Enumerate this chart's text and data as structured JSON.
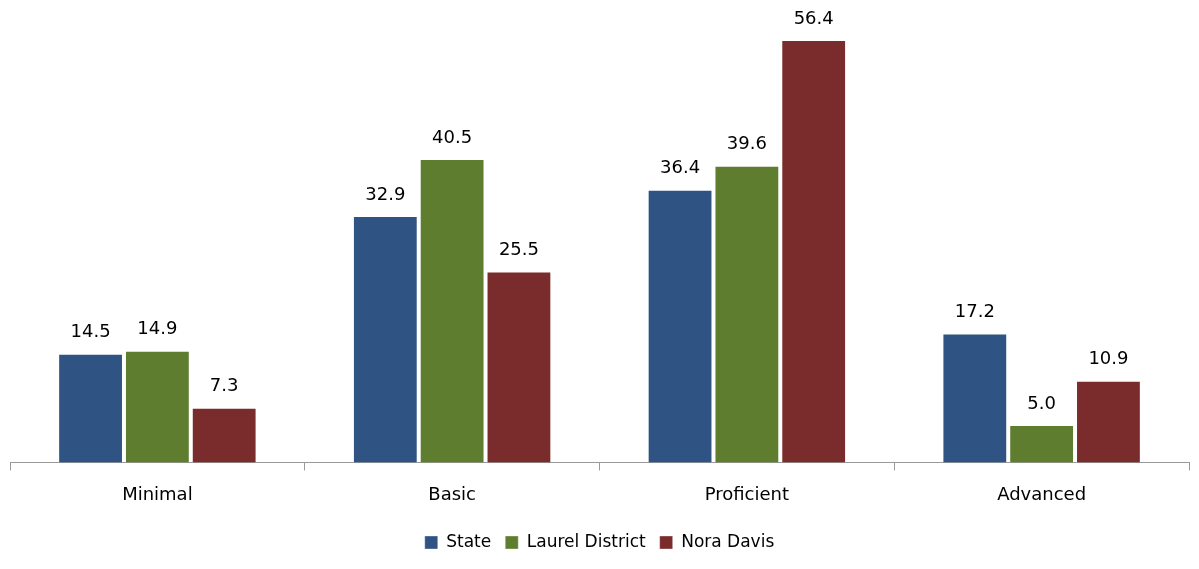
{
  "chart_data": {
    "type": "bar",
    "categories": [
      "Minimal",
      "Basic",
      "Proficient",
      "Advanced"
    ],
    "series": [
      {
        "name": "State",
        "color": "#2f5382",
        "values": [
          14.5,
          32.9,
          36.4,
          17.2
        ],
        "value_labels": [
          "14.5",
          "32.9",
          "36.4",
          "17.2"
        ]
      },
      {
        "name": "Laurel District",
        "color": "#5e7d2f",
        "values": [
          14.9,
          40.5,
          39.6,
          5.0
        ],
        "value_labels": [
          "14.9",
          "40.5",
          "39.6",
          "5.0"
        ]
      },
      {
        "name": "Nora Davis",
        "color": "#7a2b2b",
        "values": [
          7.3,
          25.5,
          56.4,
          10.9
        ],
        "value_labels": [
          "7.3",
          "25.5",
          "56.4",
          "10.9"
        ]
      }
    ],
    "ylim": [
      0,
      56.4
    ],
    "tick_labels": "x",
    "grid": false,
    "legend": "bottom"
  }
}
